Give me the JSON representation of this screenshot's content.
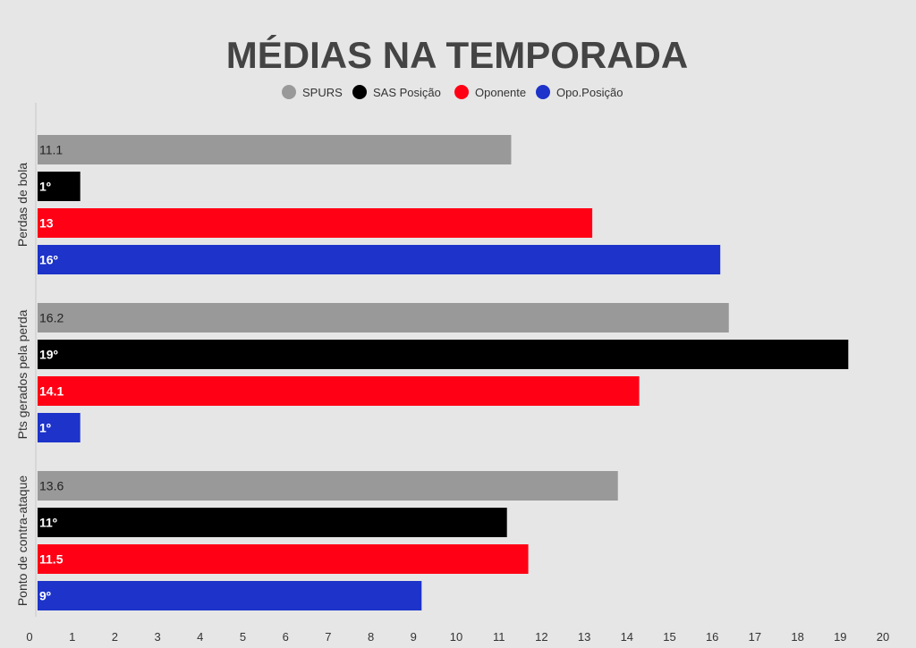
{
  "chart_data": {
    "type": "bar",
    "orientation": "horizontal",
    "title": "MÉDIAS NA TEMPORADA",
    "xlabel": "",
    "ylabel": "",
    "xlim": [
      0,
      20
    ],
    "x_ticks": [
      "0",
      "1",
      "2",
      "3",
      "4",
      "5",
      "6",
      "7",
      "8",
      "9",
      "10",
      "11",
      "12",
      "13",
      "14",
      "15",
      "16",
      "17",
      "18",
      "19",
      "20"
    ],
    "legend_position": "top-center",
    "grid": false,
    "categories": [
      "Perdas de bola",
      "Pts gerados pela perda",
      "Ponto de contra-ataque"
    ],
    "series": [
      {
        "name": "SPURS",
        "color": "#999999",
        "label_color": "#222222",
        "values": [
          11.1,
          16.2,
          13.6
        ],
        "labels": [
          "11.1",
          "16.2",
          "13.6"
        ]
      },
      {
        "name": "SAS Posição",
        "color": "#000000",
        "label_color": "#ffffff",
        "values": [
          1,
          19,
          11
        ],
        "labels": [
          "1º",
          "19º",
          "11º"
        ]
      },
      {
        "name": "Oponente",
        "color": "#ff0015",
        "label_color": "#ffffff",
        "values": [
          13,
          14.1,
          11.5
        ],
        "labels": [
          "13",
          "14.1",
          "11.5"
        ]
      },
      {
        "name": "Opo.Posição",
        "color": "#1d33c9",
        "label_color": "#ffffff",
        "values": [
          16,
          1,
          9
        ],
        "labels": [
          "16º",
          "1º",
          "9º"
        ]
      }
    ]
  }
}
